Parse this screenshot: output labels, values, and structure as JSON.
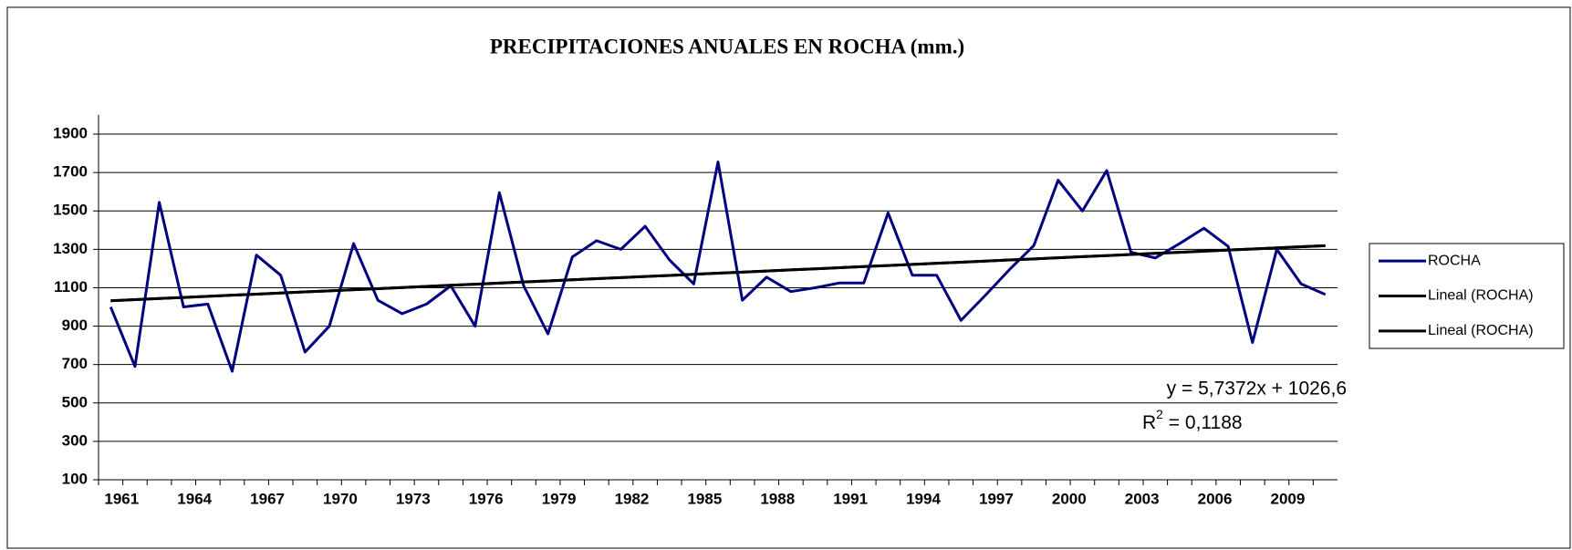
{
  "chart_data": {
    "type": "line",
    "title": "PRECIPITACIONES ANUALES EN ROCHA (mm.)",
    "categories": [
      "1961",
      null,
      null,
      "1964",
      null,
      null,
      "1967",
      null,
      null,
      "1970",
      null,
      null,
      "1973",
      null,
      null,
      "1976",
      null,
      null,
      "1979",
      null,
      null,
      "1982",
      null,
      null,
      "1985",
      null,
      null,
      "1988",
      null,
      null,
      "1991",
      null,
      null,
      "1994",
      null,
      null,
      "1997",
      null,
      null,
      "2000",
      null,
      null,
      "2003",
      null,
      null,
      "2006",
      null,
      null,
      "2009",
      null,
      null
    ],
    "series": [
      {
        "name": "ROCHA",
        "color": "#000080",
        "values": [
          1000,
          690,
          1545,
          1000,
          1015,
          665,
          1270,
          1165,
          765,
          900,
          1330,
          1035,
          965,
          1015,
          1110,
          900,
          1595,
          1110,
          860,
          1260,
          1345,
          1300,
          1420,
          1245,
          1120,
          1755,
          1035,
          1155,
          1080,
          1100,
          1125,
          1125,
          1490,
          1165,
          1165,
          930,
          1060,
          1195,
          1320,
          1660,
          1500,
          1710,
          1285,
          1255,
          1330,
          1410,
          1315,
          815,
          1300,
          1120,
          1065
        ]
      },
      {
        "name": "Lineal (ROCHA)",
        "color": "#000000",
        "values": [
          1032.3,
          1038.1,
          1043.8,
          1049.5,
          1055.3,
          1061.0,
          1066.8,
          1072.5,
          1078.2,
          1084.0,
          1089.7,
          1095.4,
          1101.2,
          1106.9,
          1112.7,
          1118.4,
          1124.1,
          1129.9,
          1135.6,
          1141.3,
          1147.1,
          1152.8,
          1158.6,
          1164.3,
          1170.0,
          1175.8,
          1181.5,
          1187.2,
          1193.0,
          1198.7,
          1204.4,
          1210.2,
          1215.9,
          1221.7,
          1227.4,
          1233.1,
          1238.9,
          1244.6,
          1250.3,
          1256.1,
          1261.8,
          1267.6,
          1273.3,
          1279.0,
          1284.8,
          1290.5,
          1296.2,
          1302.0,
          1307.7,
          1313.4,
          1319.2
        ]
      },
      {
        "name": "Lineal (ROCHA)",
        "color": "#000000",
        "values": [
          1032.3,
          1038.1,
          1043.8,
          1049.5,
          1055.3,
          1061.0,
          1066.8,
          1072.5,
          1078.2,
          1084.0,
          1089.7,
          1095.4,
          1101.2,
          1106.9,
          1112.7,
          1118.4,
          1124.1,
          1129.9,
          1135.6,
          1141.3,
          1147.1,
          1152.8,
          1158.6,
          1164.3,
          1170.0,
          1175.8,
          1181.5,
          1187.2,
          1193.0,
          1198.7,
          1204.4,
          1210.2,
          1215.9,
          1221.7,
          1227.4,
          1233.1,
          1238.9,
          1244.6,
          1250.3,
          1256.1,
          1261.8,
          1267.6,
          1273.3,
          1279.0,
          1284.8,
          1290.5,
          1296.2,
          1302.0,
          1307.7,
          1313.4,
          1319.2
        ]
      }
    ],
    "ylim": [
      100,
      2000
    ],
    "yticks": [
      100,
      300,
      500,
      700,
      900,
      1100,
      1300,
      1500,
      1700,
      1900
    ],
    "grid": true,
    "legend": "right",
    "annotations": {
      "equation": "y = 5,7372x + 1026,6",
      "r2_prefix": "R",
      "r2_sup": "2",
      "r2_value": " = 0,1188"
    }
  }
}
